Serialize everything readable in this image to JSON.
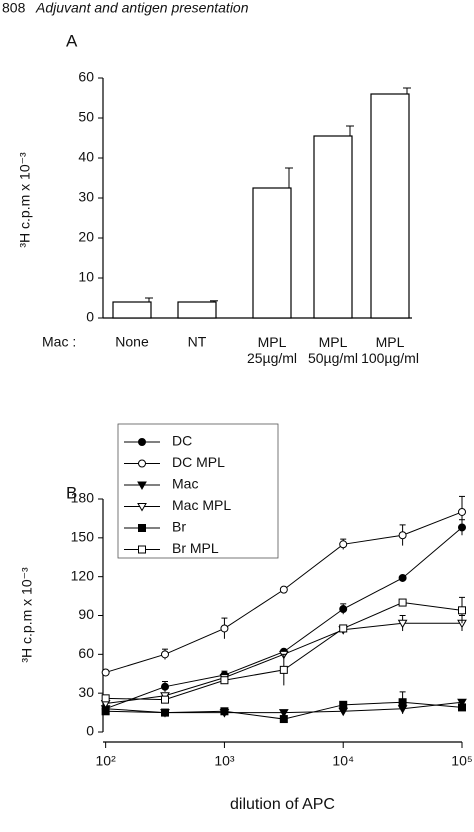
{
  "header": {
    "page": "808",
    "title": "Adjuvant and antigen presentation"
  },
  "chart_data": [
    {
      "type": "bar",
      "panel": "A",
      "ylabel": "³H c.p.m x 10⁻³",
      "xprefix": "Mac :",
      "categories": [
        "None",
        "NT",
        "MPL\n25µg/ml",
        "MPL\n50µg/ml",
        "MPL\n100µg/ml"
      ],
      "values": [
        4,
        4,
        32.5,
        45.5,
        56
      ],
      "errors": [
        1,
        0.3,
        5,
        2.5,
        1.5
      ],
      "color": "#ffffff",
      "edgecolor": "#000000",
      "ylim": [
        0,
        60
      ],
      "yticks": [
        0,
        10,
        20,
        30,
        40,
        50,
        60
      ]
    },
    {
      "type": "line",
      "panel": "B",
      "ylabel": "³H c.p.m x 10⁻³",
      "xlabel": "dilution of APC",
      "xscale": "log",
      "x": [
        100,
        316,
        1000,
        3162,
        10000,
        31623,
        100000
      ],
      "xlim": [
        95,
        100000
      ],
      "xticks": [
        {
          "value": 100,
          "label": "10²"
        },
        {
          "value": 1000,
          "label": "10³"
        },
        {
          "value": 10000,
          "label": "10⁴"
        },
        {
          "value": 100000,
          "label": "10⁵"
        }
      ],
      "ylim": [
        0,
        180
      ],
      "yticks": [
        0,
        30,
        60,
        90,
        120,
        150,
        180
      ],
      "legend": "upper left",
      "series": [
        {
          "name": "DC",
          "color": "#000000",
          "marker": "circle",
          "values": [
            18,
            35,
            44,
            62,
            95,
            119,
            158
          ],
          "errors": [
            0,
            4,
            3,
            0,
            4,
            0,
            6
          ]
        },
        {
          "name": "DC MPL",
          "color": "#000000",
          "marker": "circle-open",
          "values": [
            46,
            60,
            80,
            110,
            145,
            152,
            170
          ],
          "errors": [
            0,
            4,
            8,
            0,
            4,
            8,
            12
          ]
        },
        {
          "name": "Mac",
          "color": "#000000",
          "marker": "triangle-down",
          "values": [
            18,
            15,
            15,
            15,
            16,
            18,
            23
          ],
          "errors": [
            0,
            0,
            0,
            0,
            0,
            4,
            0
          ]
        },
        {
          "name": "Mac MPL",
          "color": "#000000",
          "marker": "triangle-down-open",
          "values": [
            22,
            28,
            42,
            60,
            79,
            84,
            84
          ],
          "errors": [
            0,
            0,
            0,
            0,
            0,
            6,
            6
          ]
        },
        {
          "name": "Br",
          "color": "#000000",
          "marker": "square",
          "values": [
            16,
            15,
            16,
            10,
            21,
            23,
            19
          ],
          "errors": [
            0,
            0,
            0,
            0,
            0,
            8,
            0
          ]
        },
        {
          "name": "Br MPL",
          "color": "#000000",
          "marker": "square-open",
          "values": [
            26,
            25,
            40,
            48,
            80,
            100,
            94
          ],
          "errors": [
            0,
            0,
            0,
            12,
            0,
            0,
            10
          ]
        }
      ]
    }
  ]
}
